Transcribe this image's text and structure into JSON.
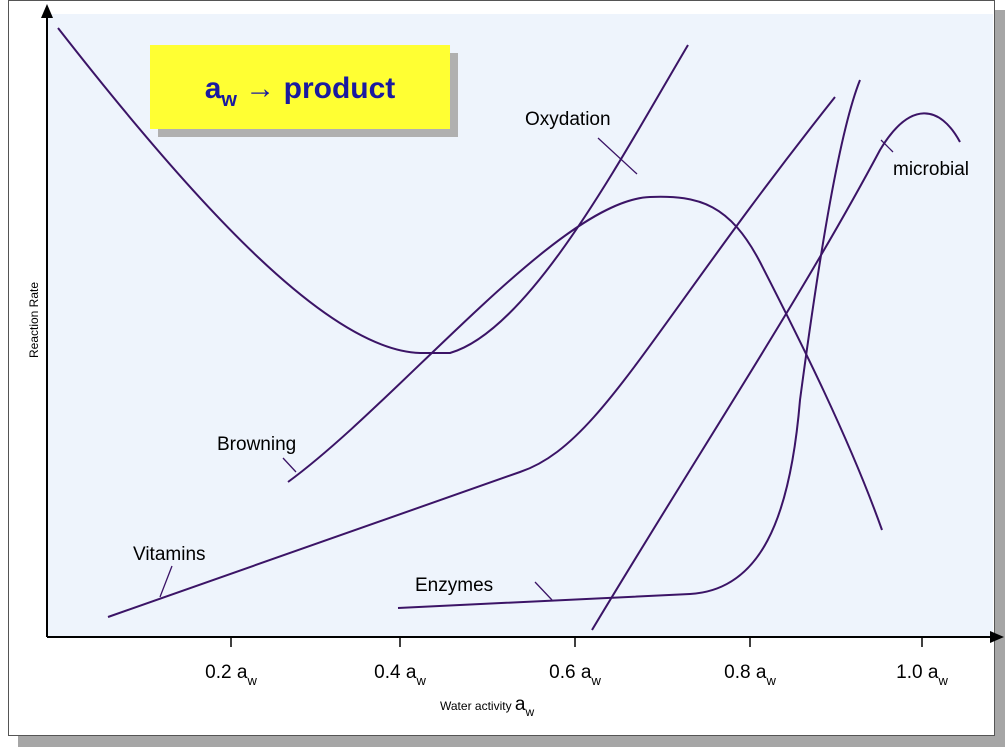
{
  "title": {
    "main": "a",
    "sub": "w",
    "rest": " → product"
  },
  "y_label": "Reaction Rate",
  "x_label": {
    "text": "Water activity ",
    "symbol": "a",
    "sub": "w"
  },
  "x_ticks": [
    {
      "text": "0.2 a",
      "sub": "w"
    },
    {
      "text": "0.4 a",
      "sub": "w"
    },
    {
      "text": "0.6 a",
      "sub": "w"
    },
    {
      "text": "0.8 a",
      "sub": "w"
    },
    {
      "text": "1.0 a",
      "sub": "w"
    }
  ],
  "curve_labels": [
    "Oxydation",
    "Browning",
    "Vitamins",
    "Enzymes",
    "microbial"
  ]
}
